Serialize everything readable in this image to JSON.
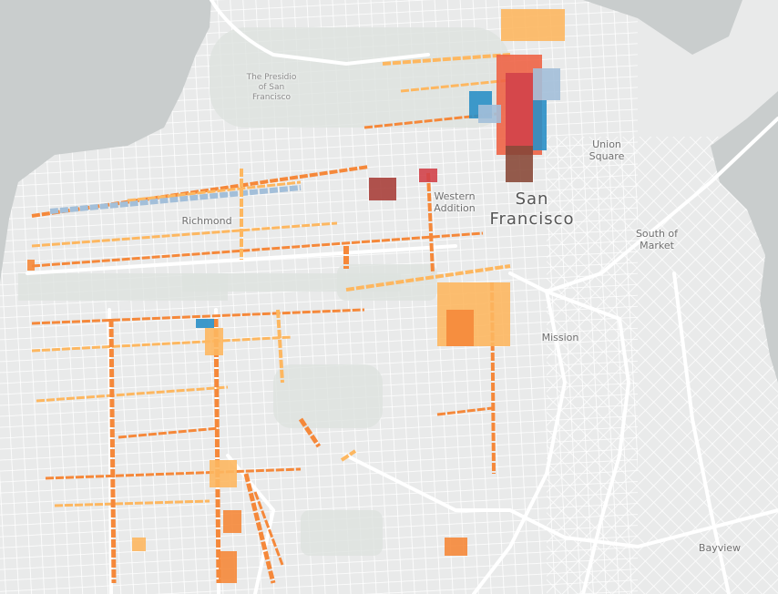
{
  "map": {
    "labels": {
      "presidio": "The Presidio\nof San\nFrancisco",
      "union_square": "Union\nSquare",
      "western_addition": "Western\nAddition",
      "city": "San\nFrancisco",
      "richmond": "Richmond",
      "south_of_market": "South of\nMarket",
      "mission": "Mission",
      "bayview": "Bayview"
    },
    "colors": {
      "water": "#c9cdcd",
      "land": "#e9eaea",
      "park": "#dde2de",
      "street": "#ffffff",
      "light_orange": "#fdb760",
      "orange": "#f5883a",
      "red_orange": "#ee6446",
      "red": "#d1434a",
      "dark_red": "#a8403b",
      "brown": "#8a4a3a",
      "blue": "#2a8fc6",
      "light_blue": "#a3bfd9"
    }
  }
}
